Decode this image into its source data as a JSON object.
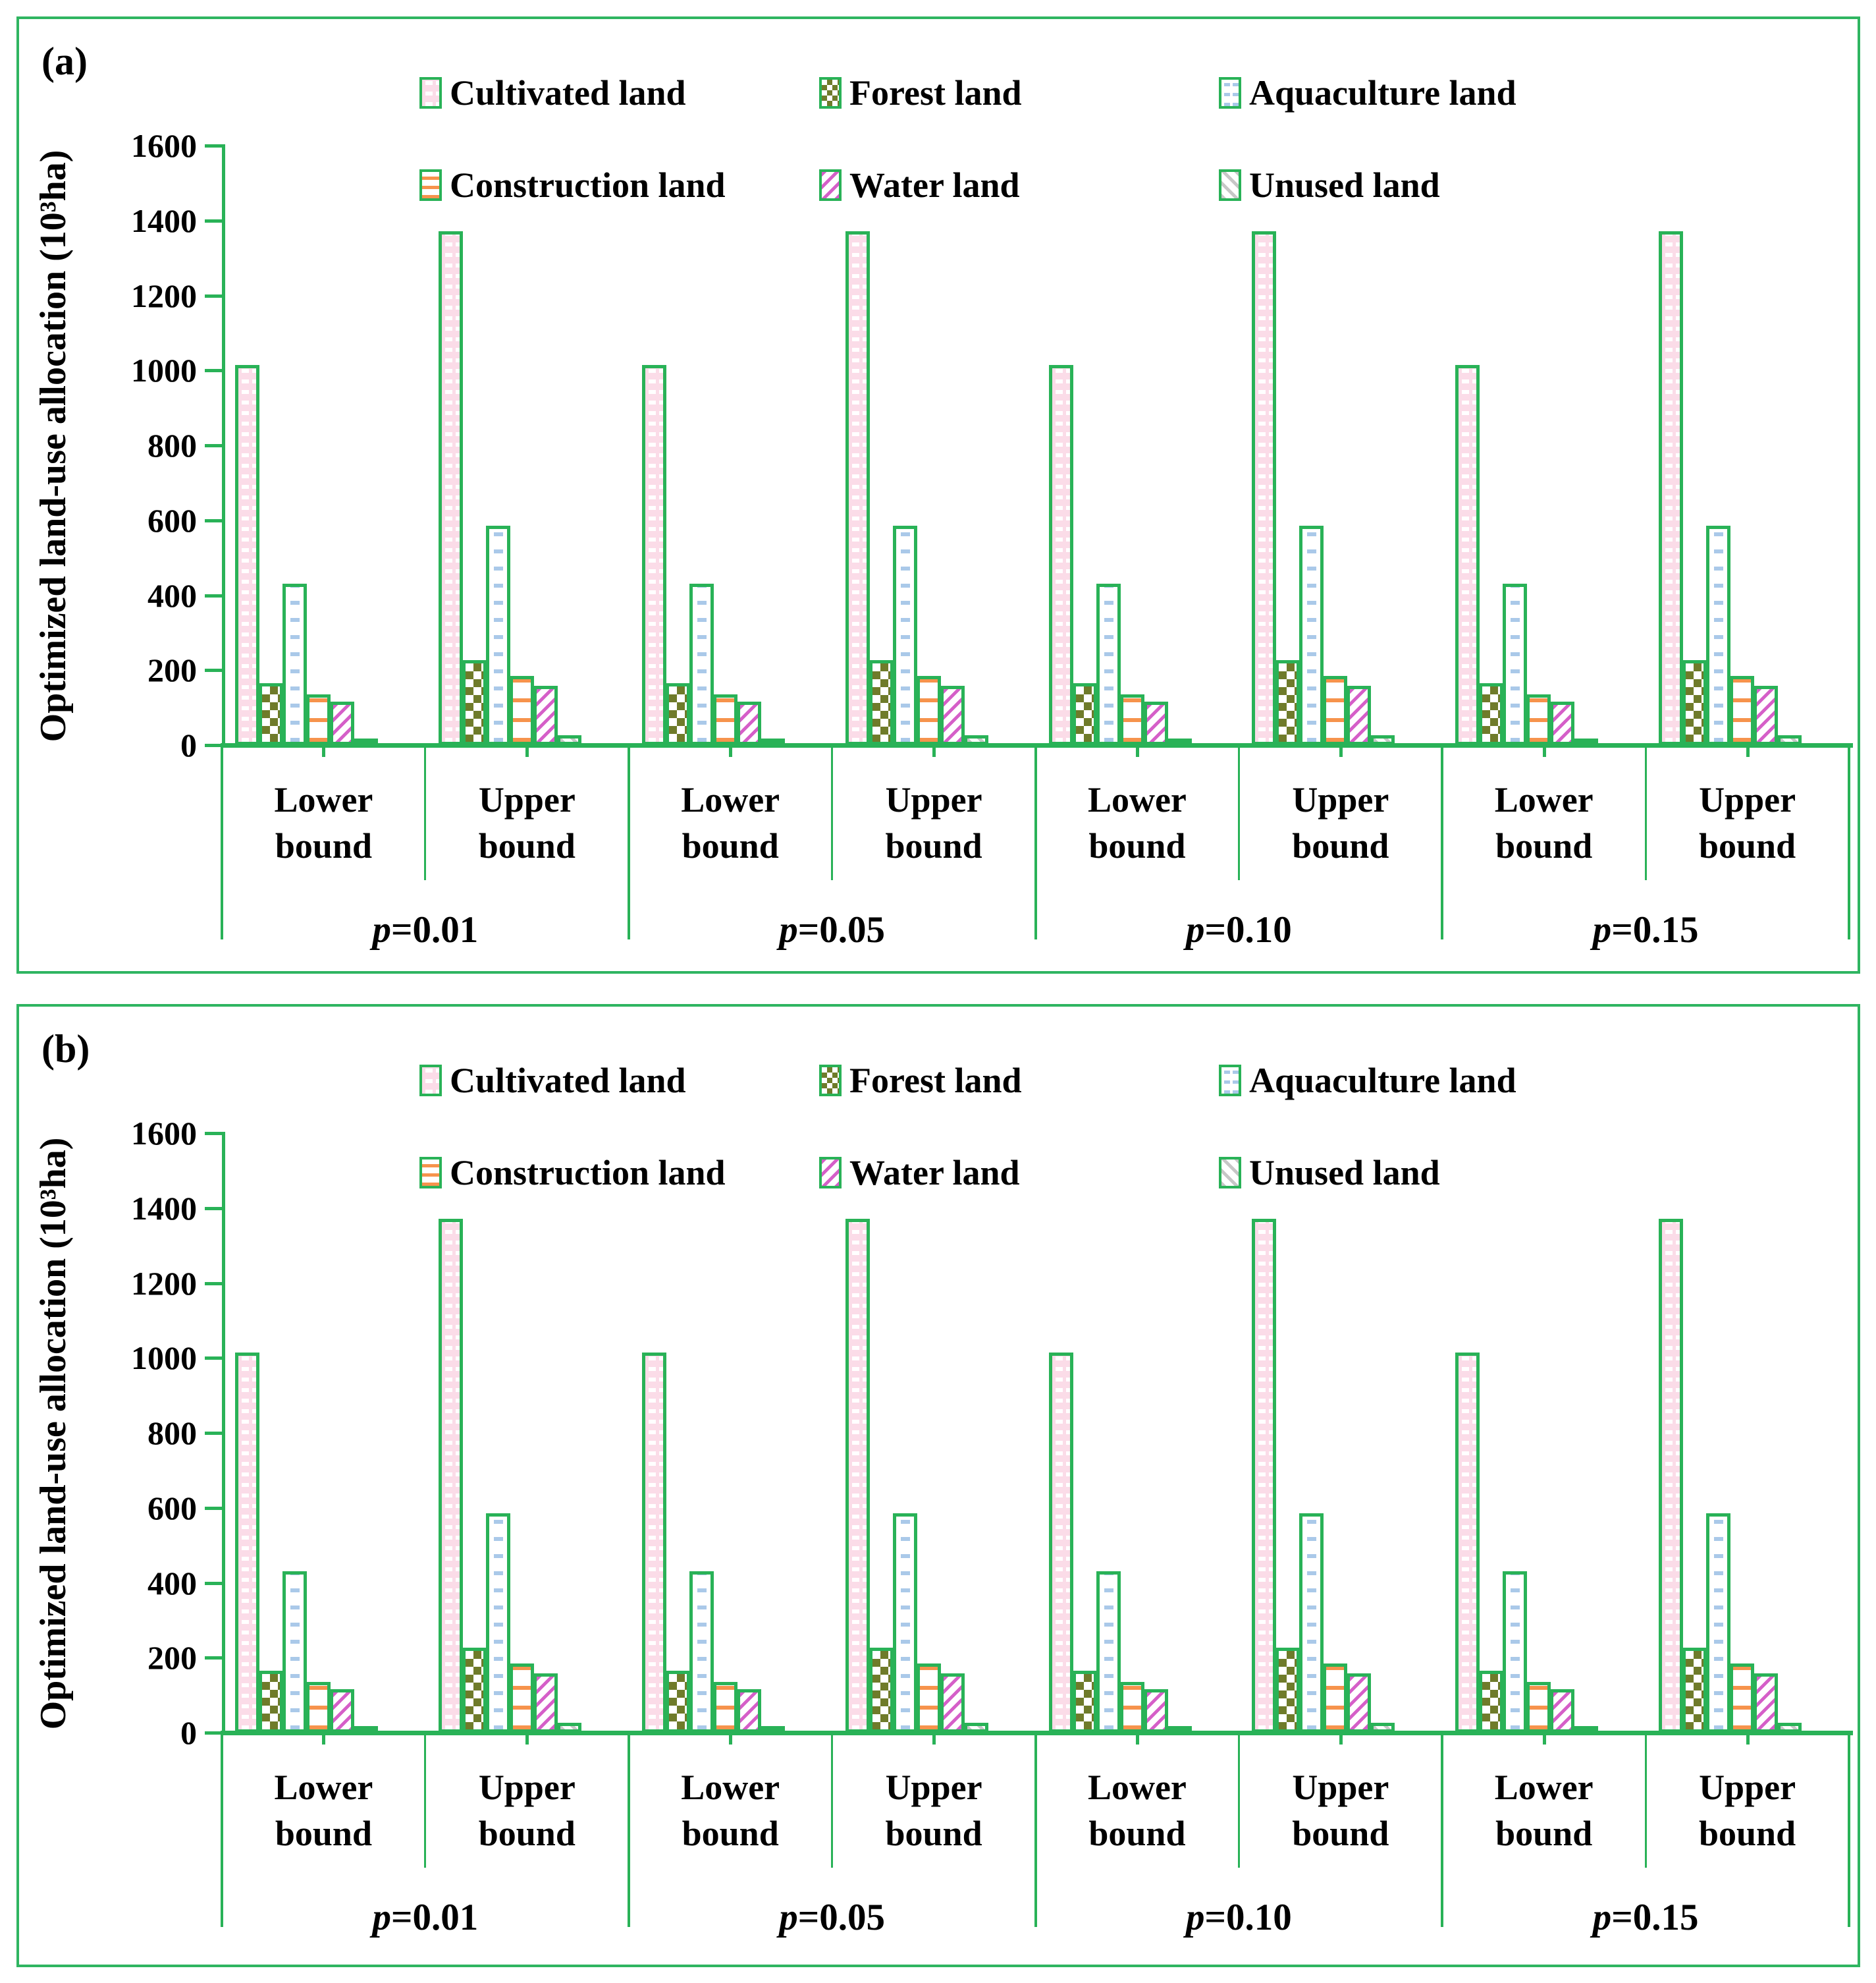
{
  "figure": {
    "background": "#ffffff",
    "panel_border_color": "#2fb561",
    "bar_border_color": "#29b257",
    "colors": {
      "cultivated_fill": "#fbdce8",
      "forest_checker": "#6f7b2a",
      "aquaculture_dash": "#aac9e9",
      "construction_line": "#f6934c",
      "water_stripe": "#d55fc8",
      "unused_stripe": "#c7c7c7"
    }
  },
  "chart_data": [
    {
      "type": "bar",
      "panel_label": "(a)",
      "ylabel": "Optimized land-use allocation (10³ha)",
      "ylim": [
        0,
        1600
      ],
      "ytick_step": 200,
      "ytick_labels": [
        "0",
        "200",
        "400",
        "600",
        "800",
        "1000",
        "1200",
        "1400",
        "1600"
      ],
      "legend_position": "top",
      "grid": false,
      "categories": [
        "p=0.01 Lower bound",
        "p=0.01 Upper bound",
        "p=0.05 Lower bound",
        "p=0.05 Upper bound",
        "p=0.10 Lower bound",
        "p=0.10 Upper bound",
        "p=0.15 Lower bound",
        "p=0.15 Upper bound"
      ],
      "bound_labels_lines": [
        [
          "Lower",
          "bound"
        ],
        [
          "Upper",
          "bound"
        ]
      ],
      "p_labels": [
        {
          "symbol": "p",
          "rest": "=0.01"
        },
        {
          "symbol": "p",
          "rest": "=0.05"
        },
        {
          "symbol": "p",
          "rest": "=0.10"
        },
        {
          "symbol": "p",
          "rest": "=0.15"
        }
      ],
      "series": [
        {
          "name": "Cultivated land",
          "pattern": "cultivated",
          "values": [
            1015,
            1372,
            1015,
            1372,
            1015,
            1372,
            1015,
            1372
          ]
        },
        {
          "name": "Forest land",
          "pattern": "forest",
          "values": [
            166,
            227,
            166,
            227,
            166,
            227,
            166,
            227
          ]
        },
        {
          "name": "Aquaculture land",
          "pattern": "aquaculture",
          "values": [
            430,
            586,
            430,
            586,
            430,
            586,
            430,
            586
          ]
        },
        {
          "name": "Construction land",
          "pattern": "construction",
          "values": [
            136,
            184,
            136,
            184,
            136,
            184,
            136,
            184
          ]
        },
        {
          "name": "Water land",
          "pattern": "water",
          "values": [
            116,
            158,
            116,
            158,
            116,
            158,
            116,
            158
          ]
        },
        {
          "name": "Unused land",
          "pattern": "unused",
          "values": [
            18,
            27,
            18,
            27,
            18,
            27,
            18,
            27
          ]
        }
      ]
    },
    {
      "type": "bar",
      "panel_label": "(b)",
      "ylabel": "Optimized land-use allocation (10³ha)",
      "ylim": [
        0,
        1600
      ],
      "ytick_step": 200,
      "ytick_labels": [
        "0",
        "200",
        "400",
        "600",
        "800",
        "1000",
        "1200",
        "1400",
        "1600"
      ],
      "legend_position": "top",
      "grid": false,
      "categories": [
        "p=0.01 Lower bound",
        "p=0.01 Upper bound",
        "p=0.05 Lower bound",
        "p=0.05 Upper bound",
        "p=0.10 Lower bound",
        "p=0.10 Upper bound",
        "p=0.15 Lower bound",
        "p=0.15 Upper bound"
      ],
      "bound_labels_lines": [
        [
          "Lower",
          "bound"
        ],
        [
          "Upper",
          "bound"
        ]
      ],
      "p_labels": [
        {
          "symbol": "p",
          "rest": "=0.01"
        },
        {
          "symbol": "p",
          "rest": "=0.05"
        },
        {
          "symbol": "p",
          "rest": "=0.10"
        },
        {
          "symbol": "p",
          "rest": "=0.15"
        }
      ],
      "series": [
        {
          "name": "Cultivated land",
          "pattern": "cultivated",
          "values": [
            1015,
            1372,
            1015,
            1372,
            1015,
            1372,
            1015,
            1372
          ]
        },
        {
          "name": "Forest land",
          "pattern": "forest",
          "values": [
            166,
            227,
            166,
            227,
            166,
            227,
            166,
            227
          ]
        },
        {
          "name": "Aquaculture land",
          "pattern": "aquaculture",
          "values": [
            430,
            586,
            430,
            586,
            430,
            586,
            430,
            586
          ]
        },
        {
          "name": "Construction land",
          "pattern": "construction",
          "values": [
            136,
            184,
            136,
            184,
            136,
            184,
            136,
            184
          ]
        },
        {
          "name": "Water land",
          "pattern": "water",
          "values": [
            116,
            158,
            116,
            158,
            116,
            158,
            116,
            158
          ]
        },
        {
          "name": "Unused land",
          "pattern": "unused",
          "values": [
            18,
            27,
            18,
            27,
            18,
            27,
            18,
            27
          ]
        }
      ]
    }
  ]
}
